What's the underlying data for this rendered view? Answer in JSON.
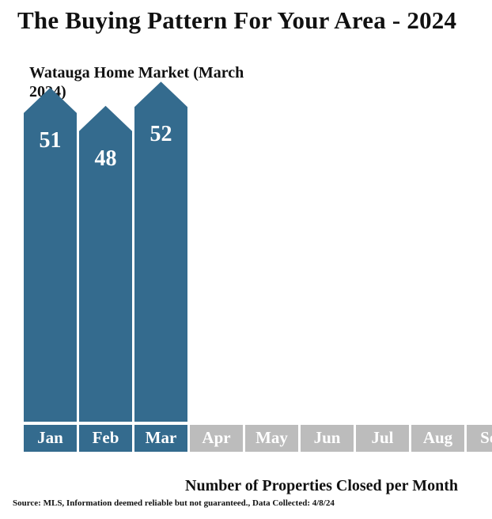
{
  "page": {
    "title": "The Buying Pattern For Your Area - 2024",
    "subtitle": "Watauga Home Market (March 2024)",
    "footer_title": "Number of Properties Closed per Month",
    "source": "Source: MLS, Information deemed reliable but not guaranteed., Data Collected: 4/8/24"
  },
  "colors": {
    "bar": "#346b8e",
    "label_active": "#346b8e",
    "label_inactive": "#bcbcbc",
    "value_text": "#ffffff",
    "month_text": "#ffffff"
  },
  "chart_data": {
    "type": "bar",
    "title": "Watauga Home Market (March 2024)",
    "xlabel": "Number of Properties Closed per Month",
    "ylabel": "",
    "categories": [
      "Jan",
      "Feb",
      "Mar",
      "Apr",
      "May",
      "Jun",
      "Jul",
      "Aug",
      "Sep"
    ],
    "values": [
      51,
      48,
      52,
      null,
      null,
      null,
      null,
      null,
      null
    ],
    "ylim": [
      0,
      60
    ],
    "grid": false,
    "legend": "none"
  }
}
